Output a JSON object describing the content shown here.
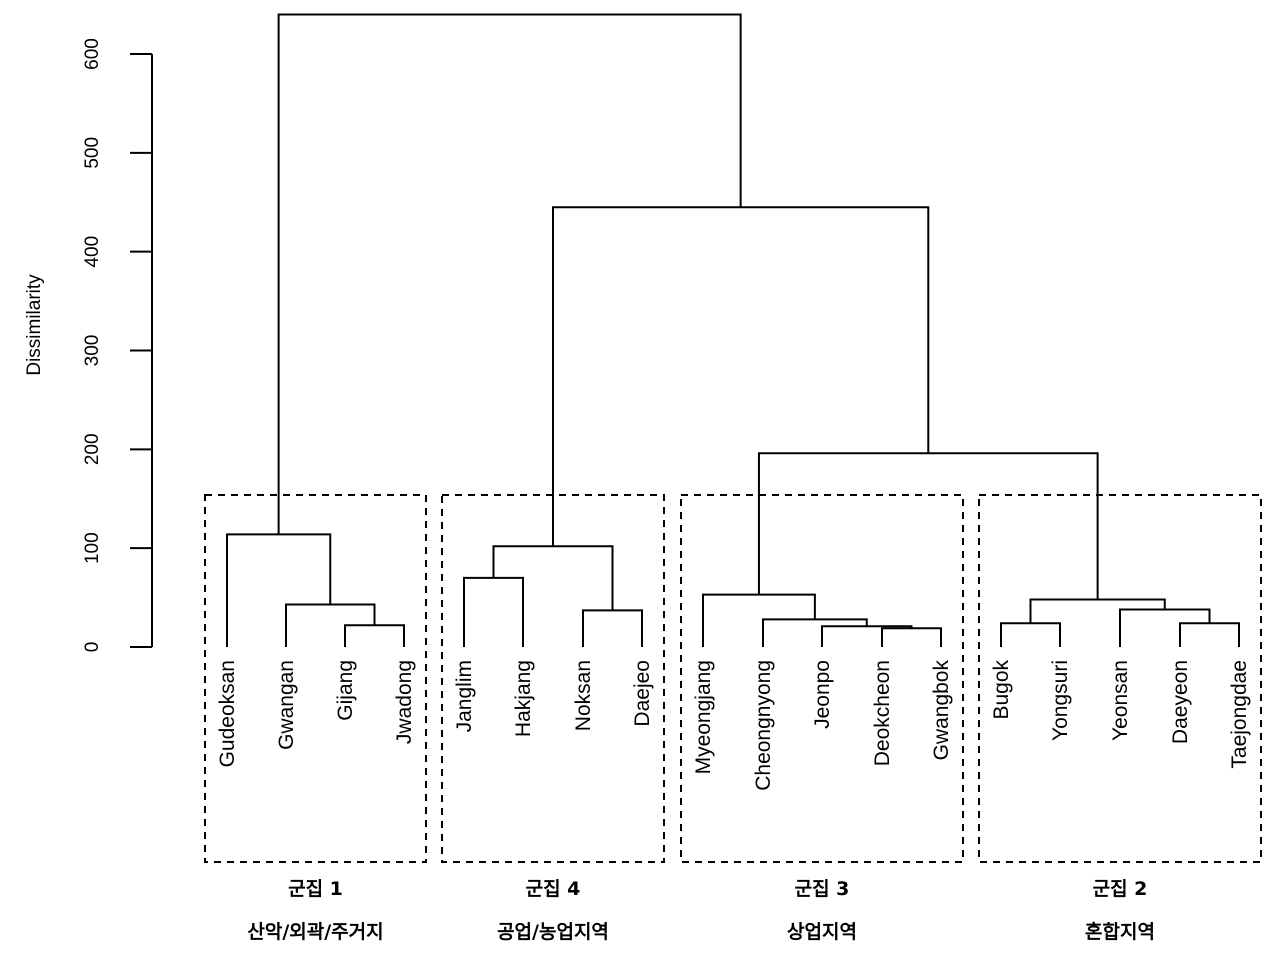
{
  "chart_data": {
    "type": "dendrogram",
    "ylabel": "Dissimilarity",
    "ylim": [
      0,
      600
    ],
    "yticks": [
      0,
      100,
      200,
      300,
      400,
      500,
      600
    ],
    "leaves": [
      "Gudeoksan",
      "Gwangan",
      "Gijang",
      "Jwadong",
      "Janglim",
      "Hakjang",
      "Noksan",
      "Daejeo",
      "Myeongjang",
      "Cheongnyong",
      "Jeonpo",
      "Deokcheon",
      "Gwangbok",
      "Bugok",
      "Yongsuri",
      "Yeonsan",
      "Daeyeon",
      "Taejongdae"
    ],
    "merges": [
      {
        "id": "m1",
        "left": "Gijang",
        "right": "Jwadong",
        "height": 22
      },
      {
        "id": "m2",
        "left": "Gwangan",
        "right": "m1",
        "height": 43
      },
      {
        "id": "m3",
        "left": "Gudeoksan",
        "right": "m2",
        "height": 114
      },
      {
        "id": "m4",
        "left": "Janglim",
        "right": "Hakjang",
        "height": 70
      },
      {
        "id": "m5",
        "left": "Noksan",
        "right": "Daejeo",
        "height": 37
      },
      {
        "id": "m6",
        "left": "m4",
        "right": "m5",
        "height": 102
      },
      {
        "id": "m7",
        "left": "Deokcheon",
        "right": "Gwangbok",
        "height": 19
      },
      {
        "id": "m8",
        "left": "Jeonpo",
        "right": "m7",
        "height": 21
      },
      {
        "id": "m9",
        "left": "Cheongnyong",
        "right": "m8",
        "height": 28
      },
      {
        "id": "m10",
        "left": "Myeongjang",
        "right": "m9",
        "height": 53
      },
      {
        "id": "m11",
        "left": "Bugok",
        "right": "Yongsuri",
        "height": 24
      },
      {
        "id": "m12",
        "left": "Daeyeon",
        "right": "Taejongdae",
        "height": 24
      },
      {
        "id": "m13",
        "left": "Yeonsan",
        "right": "m12",
        "height": 38
      },
      {
        "id": "m14",
        "left": "m11",
        "right": "m13",
        "height": 48
      },
      {
        "id": "m15",
        "left": "m10",
        "right": "m14",
        "height": 196
      },
      {
        "id": "m16",
        "left": "m6",
        "right": "m15",
        "height": 445
      },
      {
        "id": "m17",
        "left": "m3",
        "right": "m16",
        "height": 640
      }
    ],
    "clusters": [
      {
        "name": "군집 1",
        "label": "산악/외곽/주거지",
        "first": 0,
        "last": 3
      },
      {
        "name": "군집 4",
        "label": "공업/농업지역",
        "first": 4,
        "last": 7
      },
      {
        "name": "군집 3",
        "label": "상업지역",
        "first": 8,
        "last": 12
      },
      {
        "name": "군집 2",
        "label": "혼합지역",
        "first": 13,
        "last": 17
      }
    ]
  }
}
